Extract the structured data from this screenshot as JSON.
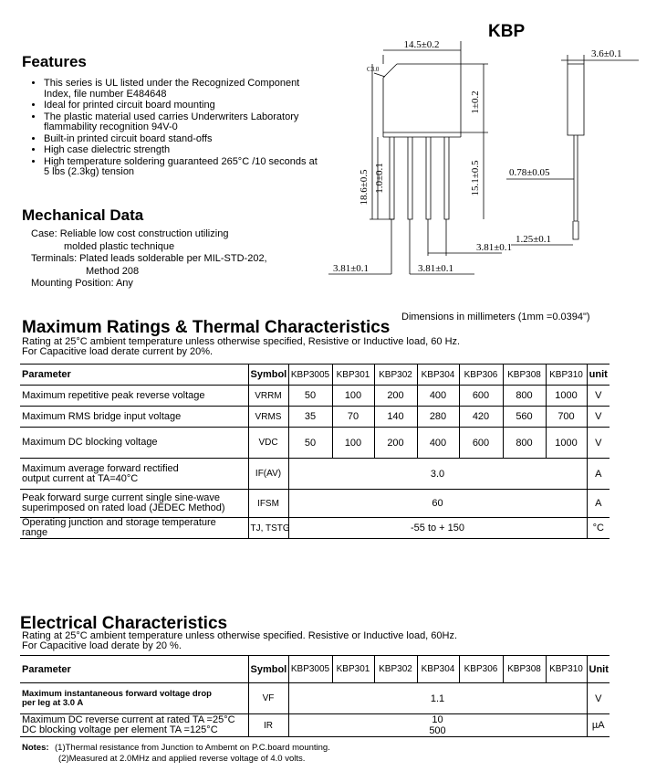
{
  "features": {
    "title": "Features",
    "items": [
      "This series is UL listed under the Recognized Component Index, file number E484648",
      "Ideal for printed circuit  board mounting",
      "The plastic material used carries Underwriters Laboratory flammability recognition 94V-0",
      "Built-in printed circuit board stand-offs",
      "High case dielectric strength",
      "High temperature soldering guaranteed 265°C /10 seconds at 5 lbs (2.3kg) tension"
    ]
  },
  "mechanical": {
    "title": "Mechanical Data",
    "lines": [
      "Case: Reliable low cost construction utilizing",
      "molded plastic technique",
      "Terminals: Plated leads solderable per MIL-STD-202,",
      "Method 208",
      "Mounting Position: Any"
    ]
  },
  "package": {
    "name": "KBP",
    "dimensions": {
      "width": "14.5±0.2",
      "chamfer": "C3.0",
      "thickness": "3.6±0.1",
      "top": "1±0.2",
      "total_height": "18.6±0.5",
      "standoff": "1.0±0.1",
      "lead_length": "15.1±0.5",
      "lead_width": "0.78±0.05",
      "lead_tip": "1.25±0.1",
      "pitch_a": "3.81±0.1",
      "pitch_b": "3.81±0.1",
      "pitch_c": "3.81±0.1"
    },
    "note": "Dimensions in millimeters (1mm =0.0394\")"
  },
  "ratings": {
    "title": "Maximum Ratings & Thermal Characteristics",
    "conditions": [
      "Rating at 25°C ambient temperature unless otherwise specified, Resistive or Inductive load, 60 Hz.",
      "For Capacitive load derate current by 20%."
    ],
    "table": {
      "header": [
        "Parameter",
        "Symbol",
        "KBP3005",
        "KBP301",
        "KBP302",
        "KBP304",
        "KBP306",
        "KBP308",
        "KBP310",
        "unit"
      ],
      "rows": [
        {
          "parameter": [
            "Maximum repetitive peak reverse voltage"
          ],
          "symbol": "VRRM",
          "values": [
            "50",
            "100",
            "200",
            "400",
            "600",
            "800",
            "1000"
          ],
          "unit": "V"
        },
        {
          "parameter": [
            "Maximum RMS bridge input voltage"
          ],
          "symbol": "VRMS",
          "values": [
            "35",
            "70",
            "140",
            "280",
            "420",
            "560",
            "700"
          ],
          "unit": "V"
        },
        {
          "parameter": [
            "Maximum DC blocking voltage"
          ],
          "symbol": "VDC",
          "values": [
            "50",
            "100",
            "200",
            "400",
            "600",
            "800",
            "1000"
          ],
          "unit": "V"
        },
        {
          "parameter": [
            "Maximum average forward rectified",
            "output current at TA=40°C"
          ],
          "symbol": "IF(AV)",
          "values": [
            "3.0"
          ],
          "unit": "A"
        },
        {
          "parameter": [
            "Peak forward surge current single sine-wave",
            "superimposed on rated load (JEDEC Method)"
          ],
          "symbol": "IFSM",
          "values": [
            "60"
          ],
          "unit": "A"
        },
        {
          "parameter": [
            "Operating junction and storage temperature",
            "range"
          ],
          "symbol": "TJ, TSTG",
          "values": [
            "-55 to + 150"
          ],
          "unit": "°C"
        }
      ]
    }
  },
  "electrical": {
    "title": "Electrical Characteristics",
    "conditions": [
      "Rating at 25°C ambient temperature unless otherwise specified. Resistive or Inductive load, 60Hz.",
      "For Capacitive load derate by 20 %."
    ],
    "table": {
      "header": [
        "Parameter",
        "Symbol",
        "KBP3005",
        "KBP301",
        "KBP302",
        "KBP304",
        "KBP306",
        "KBP308",
        "KBP310",
        "Unit"
      ],
      "rows": [
        {
          "parameter": [
            "Maximum instantaneous forward voltage drop",
            "per leg at 3.0 A"
          ],
          "symbol": "VF",
          "values": [
            "1.1"
          ],
          "unit": "V"
        },
        {
          "parameter": [
            "Maximum DC reverse current at rated TA =25°C",
            "DC blocking voltage per element      TA =125°C"
          ],
          "symbol": "IR",
          "values": [
            "10",
            "500"
          ],
          "unit": "µA"
        }
      ]
    }
  },
  "notes": {
    "label": "Notes:",
    "items": [
      "(1)Thermal resistance from Junction to Ambemt on P.C.board mounting.",
      "(2)Measured at 2.0MHz and applied reverse voltage of 4.0 volts."
    ]
  }
}
